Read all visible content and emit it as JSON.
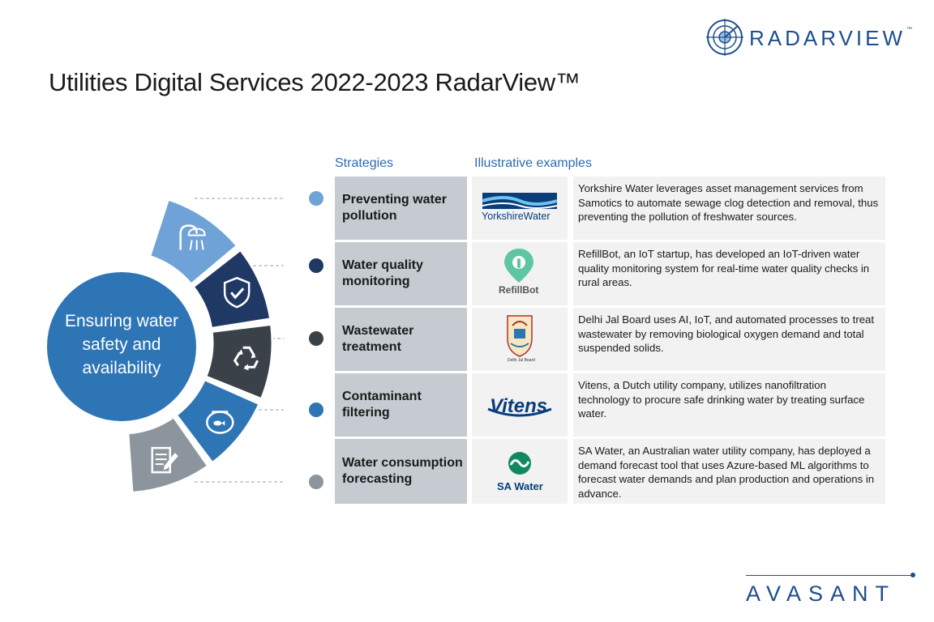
{
  "brand": {
    "radarview": "RADARVIEW",
    "tm": "™",
    "avasant": "AVASANT"
  },
  "title": "Utilities Digital Services 2022-2023 RadarView™",
  "headers": {
    "strategies": "Strategies",
    "examples": "Illustrative examples"
  },
  "center_text": "Ensuring water safety and availability",
  "colors": {
    "accent": "#2e75b6",
    "light_blue": "#6fa3d8",
    "navy": "#1f3864",
    "dark_gray": "#3b4148",
    "mid_blue": "#2e75b6",
    "gray": "#8c959d"
  },
  "rows": [
    {
      "strategy": "Preventing water pollution",
      "logo_text": "YorkshireWater",
      "description": "Yorkshire Water leverages asset management services from Samotics to automate sewage clog detection and removal, thus preventing the pollution of freshwater sources.",
      "icon": "shower-icon",
      "color": "#6fa3d8"
    },
    {
      "strategy": "Water quality monitoring",
      "logo_text": "RefillBot",
      "description": "RefillBot, an IoT startup, has developed an IoT-driven water quality monitoring system for real-time water quality checks in rural areas.",
      "icon": "shield-check-icon",
      "color": "#1f3864"
    },
    {
      "strategy": "Wastewater treatment",
      "logo_text": "Delhi Jal Board",
      "description": "Delhi Jal Board uses AI, IoT, and automated processes to treat wastewater by removing biological oxygen demand and total suspended solids.",
      "icon": "recycle-icon",
      "color": "#3b4148"
    },
    {
      "strategy": "Contaminant filtering",
      "logo_text": "Vitens",
      "description": "Vitens, a Dutch utility company, utilizes nanofiltration technology to procure safe drinking water by treating surface water.",
      "icon": "fishbowl-icon",
      "color": "#2e75b6"
    },
    {
      "strategy": "Water consumption forecasting",
      "logo_text": "SA Water",
      "description": "SA Water, an Australian water utility company, has deployed a demand forecast tool that uses Azure-based ML algorithms to forecast water demands and plan production and operations in advance.",
      "icon": "document-edit-icon",
      "color": "#8c959d"
    }
  ]
}
